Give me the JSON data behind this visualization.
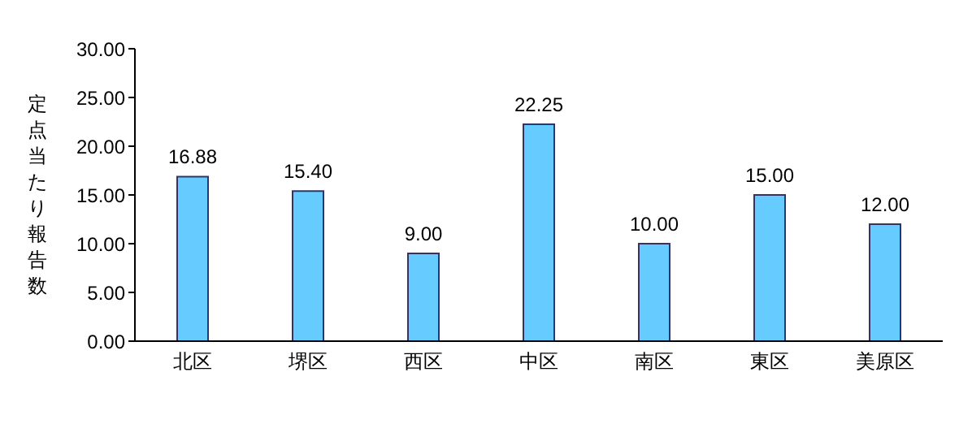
{
  "chart_data": {
    "type": "bar",
    "ylabel": "定点当たり報告数",
    "categories": [
      "北区",
      "堺区",
      "西区",
      "中区",
      "南区",
      "東区",
      "美原区"
    ],
    "values": [
      16.88,
      15.4,
      9.0,
      22.25,
      10.0,
      15.0,
      12.0
    ],
    "value_labels": [
      "16.88",
      "15.40",
      "9.00",
      "22.25",
      "10.00",
      "15.00",
      "12.00"
    ],
    "color": "#66ccff",
    "ylim": [
      0,
      30
    ],
    "yticks": [
      {
        "value": 0,
        "label": "0.00"
      },
      {
        "value": 5,
        "label": "5.00"
      },
      {
        "value": 10,
        "label": "10.00"
      },
      {
        "value": 15,
        "label": "15.00"
      },
      {
        "value": 20,
        "label": "20.00"
      },
      {
        "value": 25,
        "label": "25.00"
      },
      {
        "value": 30,
        "label": "30.00"
      }
    ],
    "grid": false,
    "legend": false
  }
}
